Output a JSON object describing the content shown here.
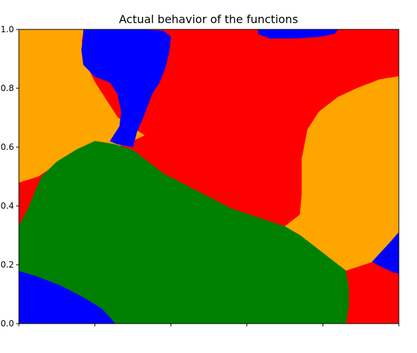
{
  "chart_data": {
    "type": "heatmap",
    "title": "Actual behavior of the functions",
    "xlabel": "",
    "ylabel": "",
    "xlim": [
      0.0,
      1.0
    ],
    "ylim": [
      0.0,
      1.0
    ],
    "grid": false,
    "x_tick_labels": [
      "",
      "",
      "",
      "",
      "",
      ""
    ],
    "y_tick_labels": [
      "0.0",
      "0.2",
      "0.4",
      "0.6",
      "0.8",
      "1.0"
    ],
    "y_ticks": [
      0.0,
      0.2,
      0.4,
      0.6,
      0.8,
      1.0
    ],
    "x_ticks": [
      0.0,
      0.2,
      0.4,
      0.6,
      0.8,
      1.0
    ],
    "classes": [
      {
        "name": "red",
        "color": "#ff0000"
      },
      {
        "name": "orange",
        "color": "#ffa500"
      },
      {
        "name": "blue",
        "color": "#0000ff"
      },
      {
        "name": "green",
        "color": "#008000"
      }
    ],
    "regions": [
      {
        "class": "red",
        "points": [
          [
            0,
            0
          ],
          [
            1,
            0
          ],
          [
            1,
            1
          ],
          [
            0,
            1
          ]
        ]
      },
      {
        "class": "orange",
        "points": [
          [
            0,
            1
          ],
          [
            0.17,
            1
          ],
          [
            0.165,
            0.96
          ],
          [
            0.17,
            0.9
          ],
          [
            0.2,
            0.82
          ],
          [
            0.26,
            0.7
          ],
          [
            0.33,
            0.64
          ],
          [
            0.28,
            0.61
          ],
          [
            0.18,
            0.58
          ],
          [
            0.12,
            0.56
          ],
          [
            0.05,
            0.5
          ],
          [
            0,
            0.48
          ]
        ]
      },
      {
        "class": "orange",
        "points": [
          [
            0.74,
            1
          ],
          [
            0.755,
            0.998
          ],
          [
            0.74,
            0.99
          ],
          [
            0.72,
            0.99
          ],
          [
            0.69,
            0.995
          ],
          [
            0.64,
            1
          ],
          [
            0.58,
            1
          ],
          [
            0.54,
            1
          ]
        ]
      },
      {
        "class": "orange",
        "points": [
          [
            1,
            0.84
          ],
          [
            0.95,
            0.83
          ],
          [
            0.89,
            0.8
          ],
          [
            0.84,
            0.77
          ],
          [
            0.79,
            0.72
          ],
          [
            0.76,
            0.66
          ],
          [
            0.745,
            0.56
          ],
          [
            0.745,
            0.44
          ],
          [
            0.74,
            0.37
          ],
          [
            0.7,
            0.33
          ],
          [
            0.74,
            0.28
          ],
          [
            0.79,
            0.24
          ],
          [
            0.83,
            0.2
          ],
          [
            0.86,
            0.18
          ],
          [
            0.93,
            0.21
          ],
          [
            0.97,
            0.25
          ],
          [
            1,
            0.31
          ]
        ]
      },
      {
        "class": "blue",
        "points": [
          [
            0.17,
            1
          ],
          [
            0.2,
            1
          ],
          [
            0.3,
            1
          ],
          [
            0.38,
            0.995
          ],
          [
            0.4,
            0.975
          ],
          [
            0.395,
            0.92
          ],
          [
            0.385,
            0.87
          ],
          [
            0.37,
            0.82
          ],
          [
            0.35,
            0.78
          ],
          [
            0.33,
            0.71
          ],
          [
            0.31,
            0.65
          ],
          [
            0.3,
            0.6
          ],
          [
            0.26,
            0.61
          ],
          [
            0.24,
            0.62
          ],
          [
            0.265,
            0.67
          ],
          [
            0.27,
            0.72
          ],
          [
            0.26,
            0.78
          ],
          [
            0.24,
            0.82
          ],
          [
            0.2,
            0.84
          ],
          [
            0.17,
            0.88
          ],
          [
            0.165,
            0.93
          ],
          [
            0.17,
            0.98
          ]
        ]
      },
      {
        "class": "blue",
        "points": [
          [
            0.63,
            1
          ],
          [
            0.84,
            1
          ],
          [
            0.83,
            0.985
          ],
          [
            0.79,
            0.975
          ],
          [
            0.73,
            0.97
          ],
          [
            0.66,
            0.97
          ],
          [
            0.63,
            0.985
          ]
        ]
      },
      {
        "class": "blue",
        "points": [
          [
            1,
            0.31
          ],
          [
            0.98,
            0.28
          ],
          [
            0.955,
            0.245
          ],
          [
            0.93,
            0.21
          ],
          [
            0.96,
            0.19
          ],
          [
            0.985,
            0.175
          ],
          [
            1,
            0.17
          ]
        ]
      },
      {
        "class": "blue",
        "points": [
          [
            0,
            0.18
          ],
          [
            0.05,
            0.16
          ],
          [
            0.11,
            0.13
          ],
          [
            0.17,
            0.09
          ],
          [
            0.22,
            0.05
          ],
          [
            0.255,
            0
          ],
          [
            0,
            0
          ]
        ]
      },
      {
        "class": "green",
        "points": [
          [
            0,
            0.33
          ],
          [
            0.02,
            0.38
          ],
          [
            0.04,
            0.44
          ],
          [
            0.06,
            0.5
          ],
          [
            0.1,
            0.55
          ],
          [
            0.15,
            0.59
          ],
          [
            0.2,
            0.62
          ],
          [
            0.25,
            0.61
          ],
          [
            0.3,
            0.59
          ],
          [
            0.34,
            0.55
          ],
          [
            0.38,
            0.51
          ],
          [
            0.44,
            0.47
          ],
          [
            0.5,
            0.43
          ],
          [
            0.56,
            0.39
          ],
          [
            0.63,
            0.36
          ],
          [
            0.7,
            0.33
          ],
          [
            0.74,
            0.3
          ],
          [
            0.79,
            0.25
          ],
          [
            0.83,
            0.21
          ],
          [
            0.86,
            0.18
          ],
          [
            0.868,
            0.12
          ],
          [
            0.868,
            0.06
          ],
          [
            0.86,
            0
          ],
          [
            0.255,
            0
          ],
          [
            0.22,
            0.05
          ],
          [
            0.17,
            0.09
          ],
          [
            0.11,
            0.13
          ],
          [
            0.05,
            0.16
          ],
          [
            0,
            0.18
          ]
        ]
      }
    ]
  }
}
